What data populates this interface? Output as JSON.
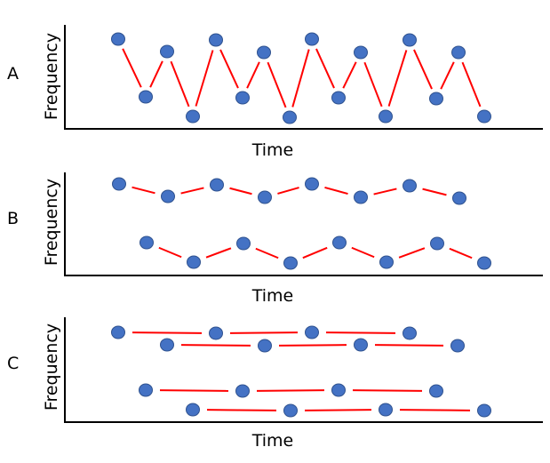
{
  "panels": [
    {
      "label": "A",
      "ylabel": "Frequency",
      "xlabel": "Time"
    },
    {
      "label": "B",
      "ylabel": "Frequency",
      "xlabel": "Time"
    },
    {
      "label": "C",
      "ylabel": "Frequency",
      "xlabel": "Time"
    }
  ],
  "colors": {
    "point": "#4472C4",
    "point_border": "#2F528F",
    "line": "#FF0000",
    "axis": "#000000"
  }
}
